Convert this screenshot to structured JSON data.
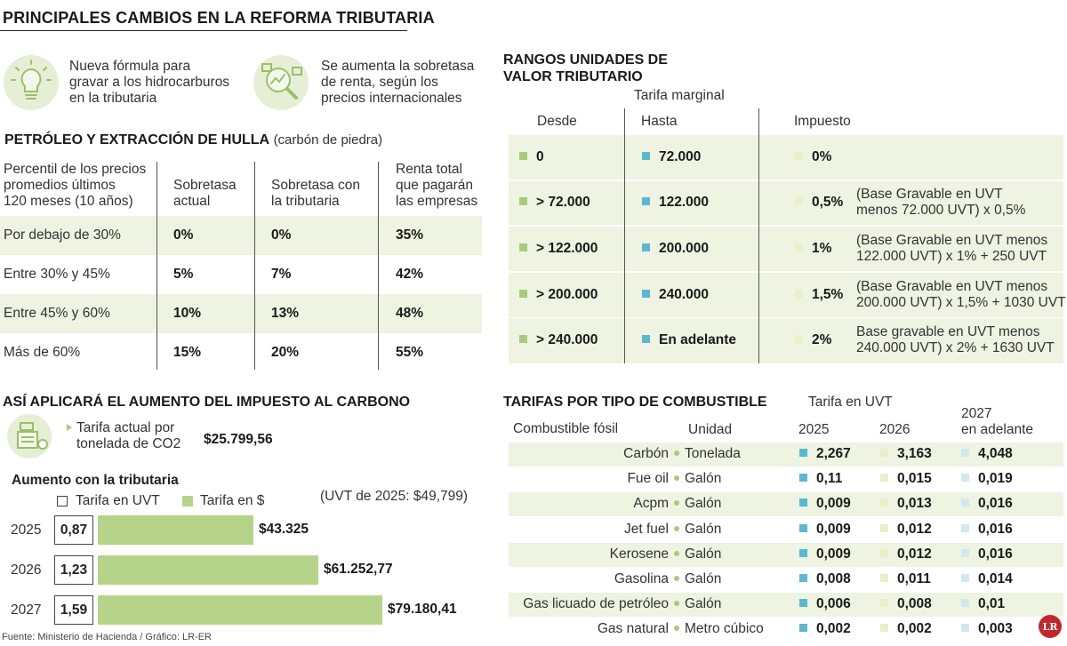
{
  "title": "PRINCIPALES CAMBIOS EN LA REFORMA TRIBUTARIA",
  "highlights": [
    {
      "icon": "lightbulb-icon",
      "lines": [
        "Nueva fórmula para",
        "gravar a los hidrocarburos",
        "en la tributaria"
      ]
    },
    {
      "icon": "magnifier-chart-icon",
      "lines": [
        "Se aumenta la sobretasa",
        "de renta, según los",
        "precios internacionales"
      ]
    }
  ],
  "petroleo": {
    "title": "PETRÓLEO Y EXTRACCIÓN DE HULLA",
    "subtitle": "(carbón de piedra)",
    "headers": [
      [
        "Percentil de los precios",
        "promedios últimos",
        "120 meses (10 años)"
      ],
      [
        "Sobretasa",
        "actual"
      ],
      [
        "Sobretasa con",
        "la tributaria"
      ],
      [
        "Renta total",
        "que pagarán",
        "las empresas"
      ]
    ],
    "rows": [
      [
        "Por debajo de 30%",
        "0%",
        "0%",
        "35%"
      ],
      [
        "Entre 30% y 45%",
        "5%",
        "7%",
        "42%"
      ],
      [
        "Entre 45% y 60%",
        "10%",
        "13%",
        "48%"
      ],
      [
        "Más de 60%",
        "15%",
        "20%",
        "55%"
      ]
    ]
  },
  "uvt_ranges": {
    "title_lines": [
      "RANGOS UNIDADES DE",
      "VALOR TRIBUTARIO"
    ],
    "group_header": "Tarifa marginal",
    "headers": [
      "Desde",
      "Hasta",
      "Impuesto"
    ],
    "rows": [
      {
        "from": "0",
        "to": "72.000",
        "rate": "0%",
        "note": []
      },
      {
        "from": "> 72.000",
        "to": "122.000",
        "rate": "0,5%",
        "note": [
          "(Base Gravable en UVT",
          "menos 72.000 UVT) x 0,5%"
        ]
      },
      {
        "from": "> 122.000",
        "to": "200.000",
        "rate": "1%",
        "note": [
          "(Base Gravable en UVT menos",
          "122.000 UVT) x 1% + 250 UVT"
        ]
      },
      {
        "from": "> 200.000",
        "to": "240.000",
        "rate": "1,5%",
        "note": [
          "(Base Gravable en UVT menos",
          "200.000 UVT) x 1,5% + 1030 UVT"
        ]
      },
      {
        "from": "> 240.000",
        "to": "En adelante",
        "rate": "2%",
        "note": [
          "Base gravable en UVT menos",
          "240.000 UVT) x 2% + 1630 UVT"
        ]
      }
    ]
  },
  "carbon": {
    "title": "ASÍ APLICARÁ EL AUMENTO DEL IMPUESTO AL CARBONO",
    "current_label": [
      "Tarifa actual por",
      "tonelada de CO2"
    ],
    "current_value": "$25.799,56",
    "increase_title": "Aumento con la tributaria",
    "legend_uvt": "Tarifa en UVT",
    "legend_pesos": "Tarifa en $",
    "uvt_note": "(UVT de 2025: $49,799)"
  },
  "chart_data": {
    "type": "bar",
    "title": "Aumento con la tributaria",
    "categories": [
      "2025",
      "2026",
      "2027"
    ],
    "series": [
      {
        "name": "Tarifa en UVT",
        "values": [
          0.87,
          1.23,
          1.59
        ],
        "labels": [
          "0,87",
          "1,23",
          "1,59"
        ]
      },
      {
        "name": "Tarifa en $",
        "values": [
          43325,
          61252.77,
          79180.41
        ],
        "labels": [
          "$43.325",
          "$61.252,77",
          "$79.180,41"
        ]
      }
    ],
    "orientation": "horizontal",
    "legend": "top",
    "grid": false
  },
  "combustibles": {
    "title": "TARIFAS POR TIPO DE COMBUSTIBLE",
    "group_header": "Tarifa en UVT",
    "headers": [
      "Combustible fósil",
      "Unidad",
      "2025",
      "2026"
    ],
    "header_2027": [
      "2027",
      "en adelante"
    ],
    "rows": [
      [
        "Carbón",
        "Tonelada",
        "2,267",
        "3,163",
        "4,048"
      ],
      [
        "Fue oil",
        "Galón",
        "0,11",
        "0,015",
        "0,019"
      ],
      [
        "Acpm",
        "Galón",
        "0,009",
        "0,013",
        "0,016"
      ],
      [
        "Jet fuel",
        "Galón",
        "0,009",
        "0,012",
        "0,016"
      ],
      [
        "Kerosene",
        "Galón",
        "0,009",
        "0,012",
        "0,016"
      ],
      [
        "Gasolina",
        "Galón",
        "0,008",
        "0,011",
        "0,014"
      ],
      [
        "Gas licuado de petróleo",
        "Galón",
        "0,006",
        "0,008",
        "0,01"
      ],
      [
        "Gas natural",
        "Metro cúbico",
        "0,002",
        "0,002",
        "0,003"
      ]
    ]
  },
  "source": "Fuente: Ministerio de Hacienda / Gráfico: LR-ER",
  "logo": "LR",
  "colors": {
    "green": "#a9cb7b",
    "blue": "#5cb8cf",
    "band": "#eef3e2"
  }
}
